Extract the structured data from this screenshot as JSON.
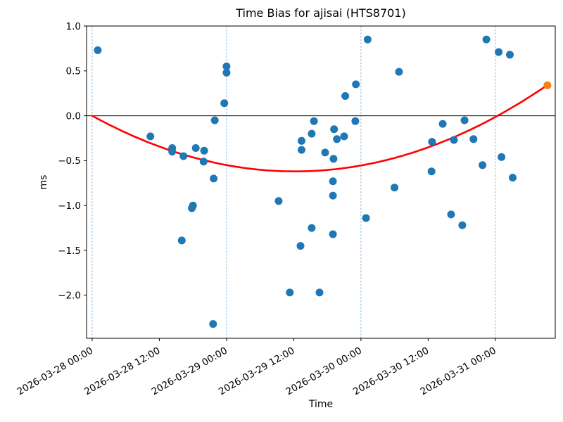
{
  "chart_data": {
    "type": "scatter",
    "title": "Time Bias for ajisai (HTS8701)",
    "xlabel": "Time",
    "ylabel": "ms",
    "x_axis": {
      "epoch": "2026-03-28 00:00",
      "range_hours": [
        -1.0,
        82.7
      ],
      "tick_hours": [
        0,
        12,
        24,
        36,
        48,
        60,
        72
      ],
      "tick_labels": [
        "2026-03-28 00:00",
        "2026-03-28 12:00",
        "2026-03-29 00:00",
        "2026-03-29 12:00",
        "2026-03-30 00:00",
        "2026-03-30 12:00",
        "2026-03-31 00:00"
      ],
      "day_gridline_hours": [
        0,
        24,
        48,
        72
      ]
    },
    "y_axis": {
      "range": [
        -2.48,
        1.0
      ],
      "ticks": [
        1.0,
        0.5,
        0.0,
        -0.5,
        -1.0,
        -1.5,
        -2.0
      ],
      "tick_labels": [
        "1.0",
        "0.5",
        "0.0",
        "−0.5",
        "−1.0",
        "−1.5",
        "−2.0"
      ]
    },
    "zero_line_ms": 0.0,
    "grid": "vertical-day-boundaries-only",
    "legend": "none",
    "gridline_color": "#5f9bcb",
    "spine_color": "#000000",
    "series": [
      {
        "name": "bias-measurements",
        "color": "#1f77b4",
        "marker_radius": 5.5,
        "points": [
          [
            "2026-03-28 01:00",
            0.73
          ],
          [
            "2026-03-28 10:24",
            -0.23
          ],
          [
            "2026-03-28 14:18",
            -0.36
          ],
          [
            "2026-03-28 14:18",
            -0.4
          ],
          [
            "2026-03-28 16:00",
            -1.39
          ],
          [
            "2026-03-28 16:18",
            -0.45
          ],
          [
            "2026-03-28 17:48",
            -1.03
          ],
          [
            "2026-03-28 18:00",
            -1.0
          ],
          [
            "2026-03-28 18:30",
            -0.36
          ],
          [
            "2026-03-28 19:54",
            -0.51
          ],
          [
            "2026-03-28 20:00",
            -0.39
          ],
          [
            "2026-03-28 21:36",
            -2.32
          ],
          [
            "2026-03-28 21:42",
            -0.7
          ],
          [
            "2026-03-28 21:54",
            -0.05
          ],
          [
            "2026-03-28 23:36",
            0.14
          ],
          [
            "2026-03-29 00:00",
            0.55
          ],
          [
            "2026-03-29 00:00",
            0.48
          ],
          [
            "2026-03-29 09:18",
            -0.95
          ],
          [
            "2026-03-29 11:18",
            -1.97
          ],
          [
            "2026-03-29 13:12",
            -1.45
          ],
          [
            "2026-03-29 13:24",
            -0.28
          ],
          [
            "2026-03-29 13:24",
            -0.38
          ],
          [
            "2026-03-29 15:12",
            -1.25
          ],
          [
            "2026-03-29 15:12",
            -0.2
          ],
          [
            "2026-03-29 15:36",
            -0.06
          ],
          [
            "2026-03-29 16:36",
            -1.97
          ],
          [
            "2026-03-29 17:36",
            -0.41
          ],
          [
            "2026-03-29 19:00",
            -0.73
          ],
          [
            "2026-03-29 19:00",
            -0.89
          ],
          [
            "2026-03-29 19:00",
            -1.32
          ],
          [
            "2026-03-29 19:06",
            -0.48
          ],
          [
            "2026-03-29 19:12",
            -0.15
          ],
          [
            "2026-03-29 19:42",
            -0.26
          ],
          [
            "2026-03-29 21:00",
            -0.23
          ],
          [
            "2026-03-29 21:12",
            0.22
          ],
          [
            "2026-03-29 23:00",
            -0.06
          ],
          [
            "2026-03-29 23:06",
            0.35
          ],
          [
            "2026-03-30 00:54",
            -1.14
          ],
          [
            "2026-03-30 01:12",
            0.85
          ],
          [
            "2026-03-30 06:00",
            -0.8
          ],
          [
            "2026-03-30 06:48",
            0.49
          ],
          [
            "2026-03-30 12:36",
            -0.62
          ],
          [
            "2026-03-30 12:42",
            -0.29
          ],
          [
            "2026-03-30 14:36",
            -0.09
          ],
          [
            "2026-03-30 16:06",
            -1.1
          ],
          [
            "2026-03-30 16:36",
            -0.27
          ],
          [
            "2026-03-30 18:06",
            -1.22
          ],
          [
            "2026-03-30 18:30",
            -0.05
          ],
          [
            "2026-03-30 20:06",
            -0.26
          ],
          [
            "2026-03-30 21:42",
            -0.55
          ],
          [
            "2026-03-30 22:24",
            0.85
          ],
          [
            "2026-03-31 00:36",
            0.71
          ],
          [
            "2026-03-31 01:06",
            -0.46
          ],
          [
            "2026-03-31 02:36",
            0.68
          ],
          [
            "2026-03-31 03:06",
            -0.69
          ]
        ]
      },
      {
        "name": "fit-endpoint",
        "color": "#ff7f0e",
        "marker_radius": 5.5,
        "points": [
          [
            "2026-03-31 09:18",
            0.34
          ]
        ]
      }
    ],
    "fit_curve": {
      "name": "quadratic-fit",
      "color": "#ff0000",
      "line_width": 2.6,
      "model": "ms = a*(t_hours - t0)^2 + c",
      "a": 0.000473,
      "t0_hours": 36.2,
      "c": -0.62,
      "t_range_hours": [
        0,
        81.3
      ],
      "start_ms": 0.0,
      "end_ms": 0.34
    }
  }
}
